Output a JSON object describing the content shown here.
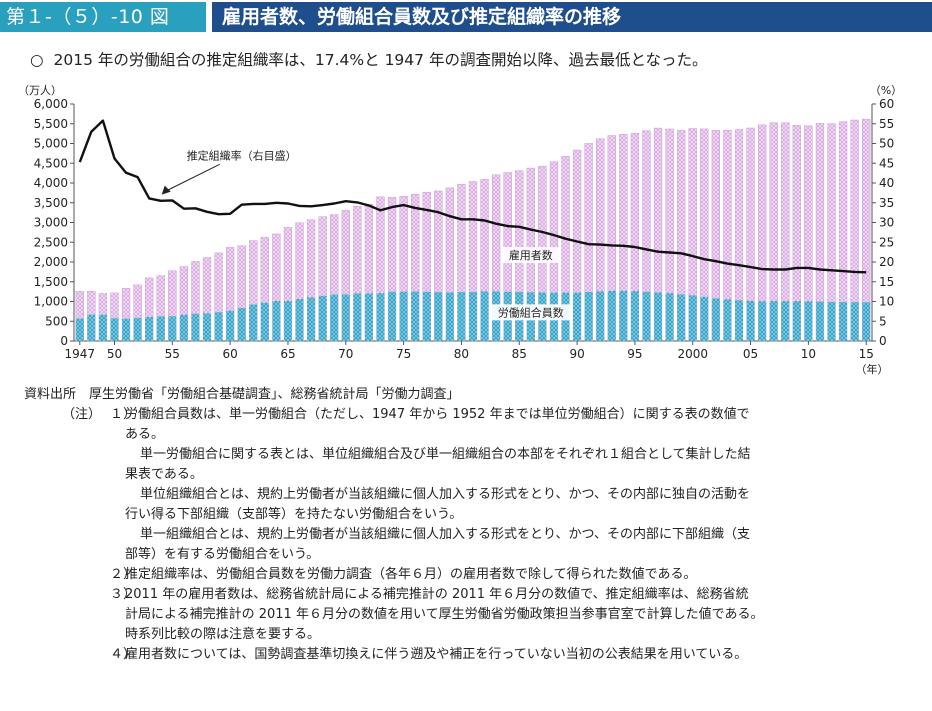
{
  "header": {
    "figure_number": "第１-（５）-10 図",
    "title": "雇用者数、労働組合員数及び推定組織率の推移"
  },
  "lead": {
    "mark": "○",
    "text": "2015 年の労働組合の推定組織率は、17.4%と 1947 年の調査開始以降、過去最低となった。"
  },
  "chart_data": {
    "type": "bar",
    "left_unit": "（万人）",
    "right_unit": "（%）",
    "x_unit": "（年）",
    "x": [
      1947,
      1948,
      1949,
      1950,
      1951,
      1952,
      1953,
      1954,
      1955,
      1956,
      1957,
      1958,
      1959,
      1960,
      1961,
      1962,
      1963,
      1964,
      1965,
      1966,
      1967,
      1968,
      1969,
      1970,
      1971,
      1972,
      1973,
      1974,
      1975,
      1976,
      1977,
      1978,
      1979,
      1980,
      1981,
      1982,
      1983,
      1984,
      1985,
      1986,
      1987,
      1988,
      1989,
      1990,
      1991,
      1992,
      1993,
      1994,
      1995,
      1996,
      1997,
      1998,
      1999,
      2000,
      2001,
      2002,
      2003,
      2004,
      2005,
      2006,
      2007,
      2008,
      2009,
      2010,
      2011,
      2012,
      2013,
      2014,
      2015
    ],
    "x_tick_labels": [
      {
        "year": 1947,
        "label": "1947"
      },
      {
        "year": 1950,
        "label": "50"
      },
      {
        "year": 1955,
        "label": "55"
      },
      {
        "year": 1960,
        "label": "60"
      },
      {
        "year": 1965,
        "label": "65"
      },
      {
        "year": 1970,
        "label": "70"
      },
      {
        "year": 1975,
        "label": "75"
      },
      {
        "year": 1980,
        "label": "80"
      },
      {
        "year": 1985,
        "label": "85"
      },
      {
        "year": 1990,
        "label": "90"
      },
      {
        "year": 1995,
        "label": "95"
      },
      {
        "year": 2000,
        "label": "2000"
      },
      {
        "year": 2005,
        "label": "05"
      },
      {
        "year": 2010,
        "label": "10"
      },
      {
        "year": 2015,
        "label": "15"
      }
    ],
    "left_axis": {
      "min": 0,
      "max": 6000,
      "step": 500,
      "tick_labels": [
        "0",
        "500",
        "1,000",
        "1,500",
        "2,000",
        "2,500",
        "3,000",
        "3,500",
        "4,000",
        "4,500",
        "5,000",
        "5,500",
        "6,000"
      ]
    },
    "right_axis": {
      "min": 0,
      "max": 60,
      "step": 5,
      "tick_labels": [
        "0",
        "5",
        "10",
        "15",
        "20",
        "25",
        "30",
        "35",
        "40",
        "45",
        "50",
        "55",
        "60"
      ]
    },
    "grid": false,
    "series": [
      {
        "name": "雇用者数",
        "kind": "bar",
        "axis": "left",
        "color": "#d9a8e0",
        "values": [
          1256,
          1259,
          1203,
          1218,
          1333,
          1421,
          1598,
          1656,
          1778,
          1884,
          2014,
          2112,
          2231,
          2370,
          2413,
          2541,
          2623,
          2710,
          2876,
          2994,
          3071,
          3148,
          3199,
          3306,
          3412,
          3465,
          3650,
          3637,
          3662,
          3712,
          3769,
          3799,
          3876,
          3971,
          4037,
          4098,
          4208,
          4265,
          4313,
          4379,
          4428,
          4538,
          4679,
          4835,
          5002,
          5119,
          5202,
          5236,
          5263,
          5322,
          5391,
          5368,
          5331,
          5379,
          5369,
          5331,
          5335,
          5355,
          5393,
          5472,
          5523,
          5524,
          5460,
          5447,
          5512,
          5504,
          5553,
          5595,
          5617
        ]
      },
      {
        "name": "労働組合員数",
        "kind": "bar",
        "axis": "left",
        "color": "#2f9fc4",
        "values": [
          569,
          668,
          666,
          577,
          569,
          584,
          606,
          623,
          628,
          663,
          690,
          699,
          729,
          766,
          835,
          924,
          968,
          1014,
          1015,
          1060,
          1103,
          1142,
          1177,
          1181,
          1202,
          1201,
          1210,
          1246,
          1247,
          1250,
          1244,
          1237,
          1229,
          1237,
          1240,
          1253,
          1252,
          1246,
          1242,
          1234,
          1227,
          1221,
          1223,
          1226,
          1240,
          1254,
          1266,
          1270,
          1261,
          1245,
          1229,
          1209,
          1182,
          1154,
          1117,
          1080,
          1053,
          1031,
          1014,
          1004,
          1008,
          1007,
          1008,
          1005,
          996,
          989,
          987,
          985,
          982
        ]
      },
      {
        "name": "推定組織率（右目盛）",
        "kind": "line",
        "axis": "right",
        "color": "#111111",
        "values": [
          45.3,
          53.0,
          55.8,
          46.2,
          42.6,
          41.5,
          36.1,
          35.5,
          35.6,
          33.5,
          33.6,
          32.7,
          32.1,
          32.2,
          34.5,
          34.7,
          34.7,
          35.0,
          34.8,
          34.2,
          34.1,
          34.4,
          34.8,
          35.4,
          35.1,
          34.3,
          33.1,
          33.9,
          34.4,
          33.7,
          33.2,
          32.6,
          31.6,
          30.8,
          30.8,
          30.5,
          29.7,
          29.1,
          28.9,
          28.2,
          27.6,
          26.8,
          25.9,
          25.2,
          24.5,
          24.4,
          24.2,
          24.1,
          23.8,
          23.2,
          22.6,
          22.4,
          22.2,
          21.5,
          20.7,
          20.2,
          19.6,
          19.2,
          18.7,
          18.2,
          18.1,
          18.1,
          18.5,
          18.5,
          18.1,
          17.9,
          17.7,
          17.5,
          17.4
        ]
      }
    ],
    "annotations": [
      {
        "text": "推定組織率（右目盛）",
        "year": 1961,
        "value": 46,
        "axis": "right",
        "arrow_to_year": 1954,
        "arrow_to_value": 36.3
      },
      {
        "text": "雇用者数",
        "year": 1986,
        "value": 2100,
        "axis": "left"
      },
      {
        "text": "労働組合員数",
        "year": 1986,
        "value": 650,
        "axis": "left"
      }
    ]
  },
  "notes": {
    "source_label": "資料出所",
    "source_text": "厚生労働省「労働組合基礎調査」、総務省統計局「労働力調査」",
    "note_label": "（注）",
    "items": [
      {
        "num": "１）",
        "lines": [
          "労働組合員数は、単一労働組合（ただし、1947 年から 1952 年までは単位労働組合）に関する表の数値で",
          "ある。"
        ],
        "paras": [
          [
            "単一労働組合に関する表とは、単位組織組合及び単一組織組合の本部をそれぞれ１組合として集計した結",
            "果表である。"
          ],
          [
            "単位組織組合とは、規約上労働者が当該組織に個人加入する形式をとり、かつ、その内部に独自の活動を",
            "行い得る下部組織（支部等）を持たない労働組合をいう。"
          ],
          [
            "単一組織組合とは、規約上労働者が当該組織に個人加入する形式をとり、かつ、その内部に下部組織（支",
            "部等）を有する労働組合をいう。"
          ]
        ]
      },
      {
        "num": "２）",
        "lines": [
          "推定組織率は、労働組合員数を労働力調査（各年６月）の雇用者数で除して得られた数値である。"
        ]
      },
      {
        "num": "３）",
        "lines": [
          "2011 年の雇用者数は、総務省統計局による補完推計の 2011 年６月分の数値で、推定組織率は、総務省統",
          "計局による補完推計の 2011 年６月分の数値を用いて厚生労働省労働政策担当参事官室で計算した値である。",
          "時系列比較の際は注意を要する。"
        ]
      },
      {
        "num": "４）",
        "lines": [
          "雇用者数については、国勢調査基準切換えに伴う遡及や補正を行っていない当初の公表結果を用いている。"
        ]
      }
    ]
  }
}
